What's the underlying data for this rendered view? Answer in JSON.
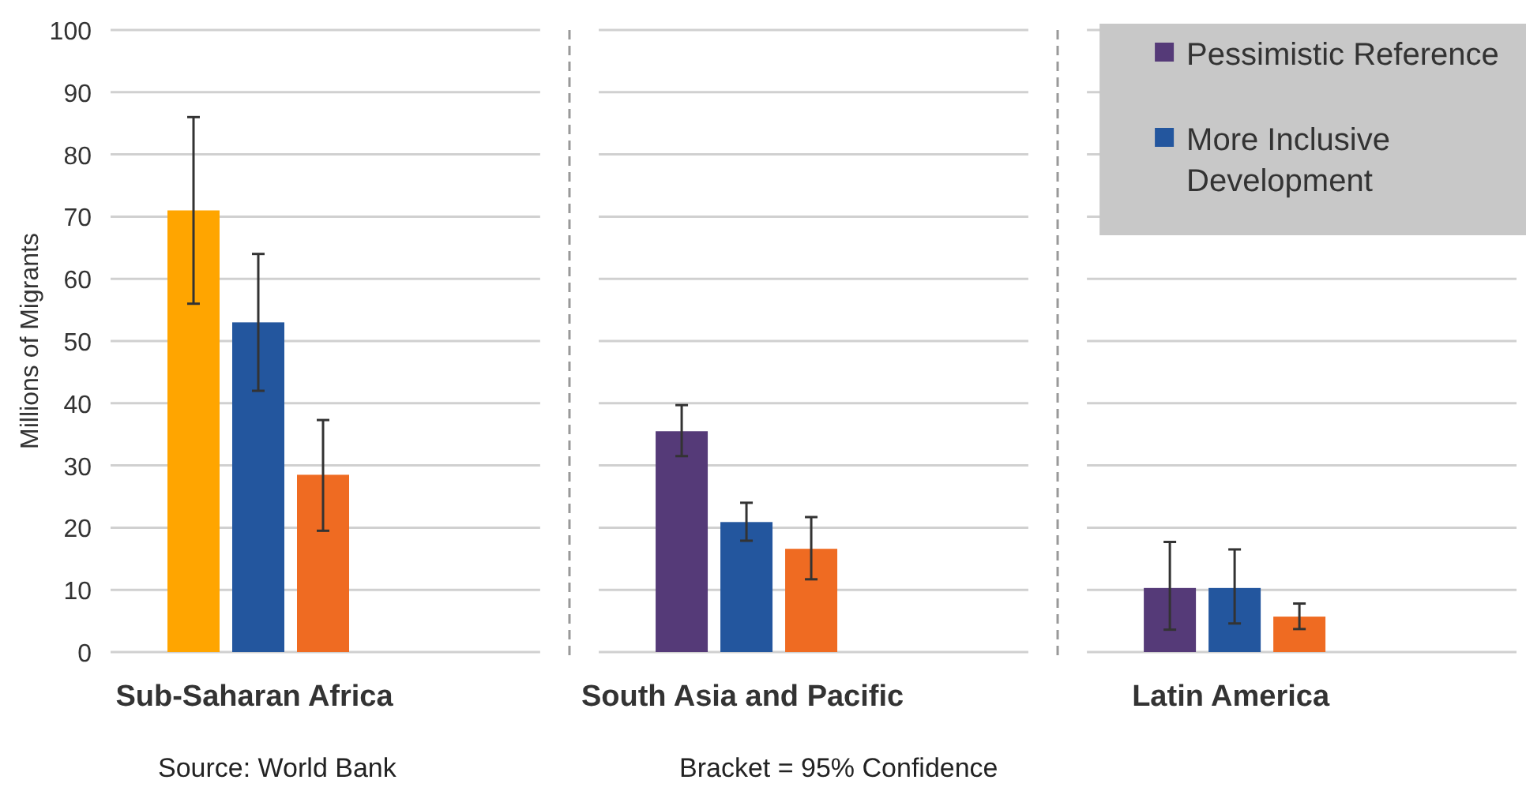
{
  "chart_data": {
    "type": "bar",
    "ylabel": "Millions of Migrants",
    "categories": [
      "Sub-Saharan Africa",
      "South Asia and Pacific",
      "Latin America"
    ],
    "series": [
      {
        "name": "Pessimistic Reference",
        "color": "#553a78",
        "colors": [
          "#ffa500",
          "#553a78",
          "#553a78"
        ],
        "values": [
          71,
          35.5,
          10.3
        ],
        "errors": [
          [
            56,
            86
          ],
          [
            31.5,
            39.7
          ],
          [
            3.6,
            17.7
          ]
        ]
      },
      {
        "name": "More Inclusive Development",
        "color": "#23569e",
        "values": [
          53,
          20.9,
          10.3
        ],
        "errors": [
          [
            42,
            64
          ],
          [
            17.9,
            24
          ],
          [
            4.6,
            16.5
          ]
        ]
      },
      {
        "color": "#ef6b22",
        "values": [
          28.5,
          16.6,
          5.7
        ],
        "errors": [
          [
            19.5,
            37.3
          ],
          [
            11.7,
            21.7
          ],
          [
            3.7,
            7.8
          ]
        ]
      }
    ],
    "ylim": [
      0,
      100
    ],
    "yticks": [
      0,
      10,
      20,
      30,
      40,
      50,
      60,
      70,
      80,
      90,
      100
    ],
    "grid": "y",
    "legend": "top right",
    "annotations": [
      "Source: World Bank",
      "Bracket = 95% Confidence"
    ]
  }
}
